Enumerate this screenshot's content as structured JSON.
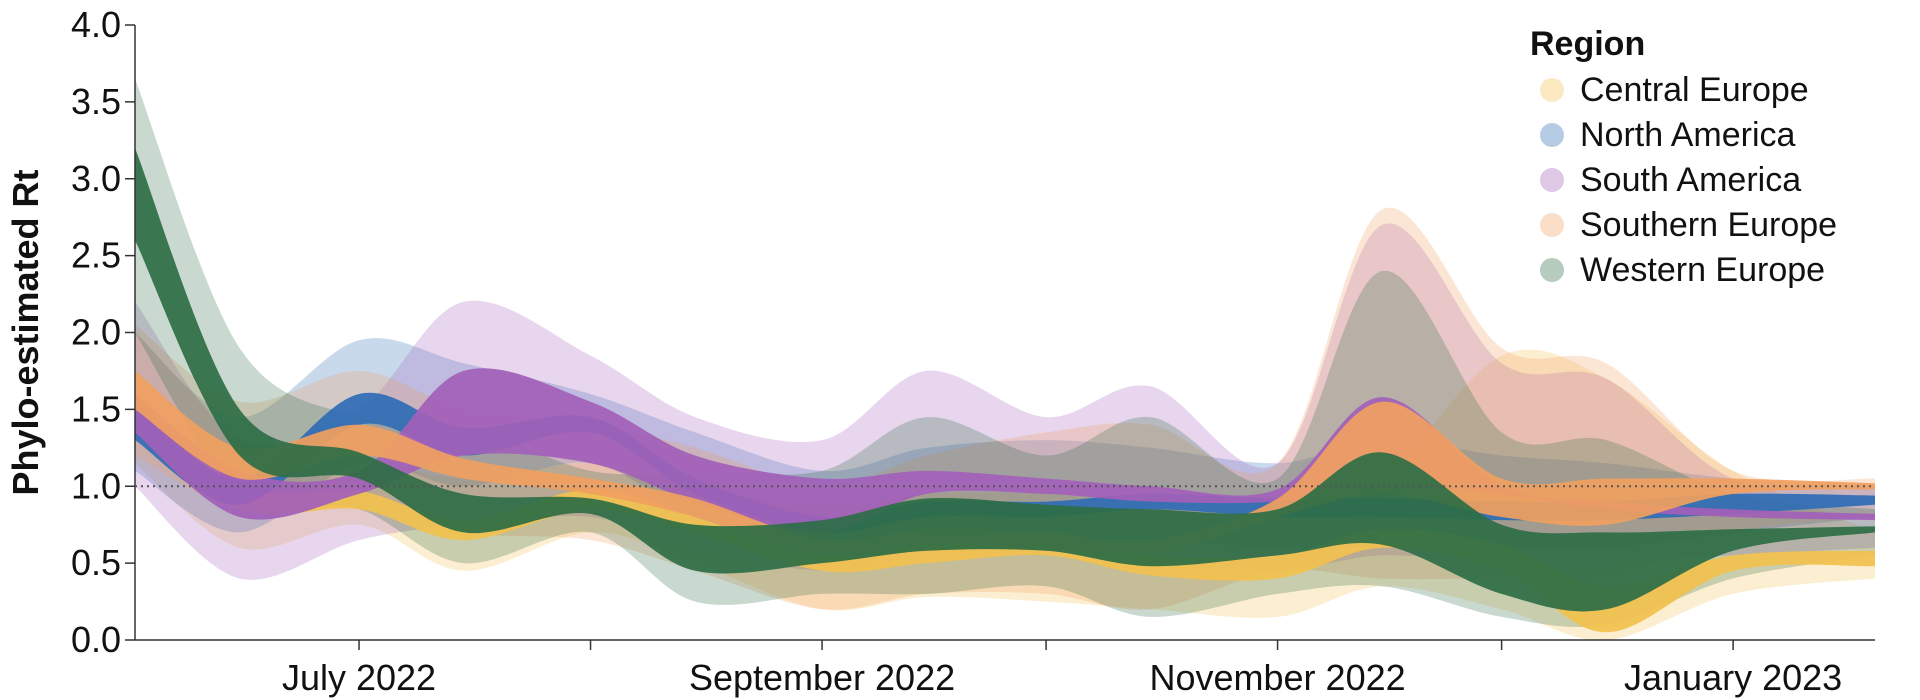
{
  "chart_data": {
    "type": "area",
    "ylabel": "Phylo-estimated Rt",
    "xlabel": "",
    "ylim": [
      0.0,
      4.0
    ],
    "xlim": [
      "2022-06-01",
      "2023-01-20"
    ],
    "yticks": [
      0.0,
      0.5,
      1.0,
      1.5,
      2.0,
      2.5,
      3.0,
      3.5,
      4.0
    ],
    "ytick_labels": [
      "0.0",
      "0.5",
      "1.0",
      "1.5",
      "2.0",
      "2.5",
      "3.0",
      "3.5",
      "4.0"
    ],
    "xticks": [
      {
        "date": "2022-07-01",
        "label": "July 2022"
      },
      {
        "date": "2022-08-01",
        "label": ""
      },
      {
        "date": "2022-09-01",
        "label": "September 2022"
      },
      {
        "date": "2022-10-01",
        "label": ""
      },
      {
        "date": "2022-11-01",
        "label": "November 2022"
      },
      {
        "date": "2022-12-01",
        "label": ""
      },
      {
        "date": "2023-01-01",
        "label": "January 2023"
      }
    ],
    "reference_line": 1.0,
    "legend": {
      "title": "Region",
      "position": "top-right"
    },
    "series": [
      {
        "name": "Central Europe",
        "color": "#f2c14e",
        "dates": [
          "2022-06-01",
          "2022-06-15",
          "2022-07-01",
          "2022-07-15",
          "2022-08-01",
          "2022-08-15",
          "2022-09-01",
          "2022-09-15",
          "2022-10-01",
          "2022-10-15",
          "2022-11-01",
          "2022-11-15",
          "2022-12-01",
          "2022-12-15",
          "2023-01-01",
          "2023-01-20"
        ],
        "inner_lower": [
          1.4,
          0.85,
          0.85,
          0.65,
          0.85,
          0.7,
          0.45,
          0.5,
          0.55,
          0.42,
          0.4,
          0.6,
          0.45,
          0.05,
          0.45,
          0.48
        ],
        "inner_upper": [
          1.6,
          1.0,
          0.97,
          0.78,
          0.98,
          0.8,
          0.55,
          0.62,
          0.68,
          0.55,
          0.55,
          0.72,
          0.62,
          0.35,
          0.55,
          0.58
        ],
        "outer_lower": [
          1.15,
          0.6,
          0.75,
          0.45,
          0.7,
          0.5,
          0.2,
          0.28,
          0.25,
          0.2,
          0.15,
          0.35,
          0.2,
          0.0,
          0.3,
          0.4
        ],
        "outer_upper": [
          2.0,
          1.35,
          1.2,
          1.05,
          1.15,
          1.0,
          0.85,
          0.95,
          0.95,
          0.9,
          0.9,
          1.05,
          1.85,
          1.7,
          1.1,
          0.7
        ]
      },
      {
        "name": "North America",
        "color": "#2f6db5",
        "dates": [
          "2022-06-01",
          "2022-06-15",
          "2022-07-01",
          "2022-07-15",
          "2022-08-01",
          "2022-08-15",
          "2022-09-01",
          "2022-09-15",
          "2022-10-01",
          "2022-10-15",
          "2022-11-01",
          "2022-11-15",
          "2022-12-01",
          "2022-12-15",
          "2023-01-01",
          "2023-01-20"
        ],
        "inner_lower": [
          1.3,
          0.88,
          1.4,
          1.2,
          1.35,
          0.95,
          0.7,
          0.8,
          0.8,
          0.85,
          0.8,
          0.8,
          0.78,
          0.78,
          0.82,
          0.88
        ],
        "inner_upper": [
          1.55,
          1.05,
          1.6,
          1.38,
          1.45,
          1.05,
          0.8,
          0.9,
          0.9,
          0.95,
          0.92,
          0.92,
          0.9,
          0.9,
          0.95,
          0.94
        ],
        "outer_lower": [
          1.1,
          0.7,
          1.15,
          1.0,
          1.15,
          0.8,
          0.55,
          0.65,
          0.6,
          0.65,
          0.6,
          0.6,
          0.6,
          0.6,
          0.7,
          0.8
        ],
        "outer_upper": [
          2.0,
          1.45,
          1.95,
          1.8,
          1.6,
          1.35,
          1.1,
          1.25,
          1.3,
          1.25,
          1.15,
          1.3,
          1.2,
          1.15,
          1.05,
          1.0
        ]
      },
      {
        "name": "South America",
        "color": "#a25fb8",
        "dates": [
          "2022-06-01",
          "2022-06-15",
          "2022-07-01",
          "2022-07-15",
          "2022-08-01",
          "2022-08-15",
          "2022-09-01",
          "2022-09-15",
          "2022-10-01",
          "2022-10-15",
          "2022-11-01",
          "2022-11-15",
          "2022-12-01",
          "2022-12-15",
          "2023-01-01",
          "2023-01-20"
        ],
        "inner_lower": [
          1.35,
          0.8,
          0.95,
          1.2,
          1.15,
          0.9,
          0.7,
          0.95,
          0.95,
          0.9,
          0.9,
          1.0,
          0.95,
          0.85,
          0.8,
          0.78
        ],
        "inner_upper": [
          1.6,
          1.1,
          1.1,
          1.75,
          1.55,
          1.2,
          1.05,
          1.1,
          1.05,
          1.0,
          0.98,
          1.58,
          1.0,
          0.9,
          0.85,
          0.82
        ],
        "outer_lower": [
          1.0,
          0.4,
          0.65,
          0.75,
          0.8,
          0.6,
          0.45,
          0.55,
          0.55,
          0.5,
          0.45,
          0.55,
          0.5,
          0.5,
          0.55,
          0.6
        ],
        "outer_upper": [
          2.2,
          1.3,
          1.5,
          2.2,
          1.85,
          1.45,
          1.3,
          1.75,
          1.45,
          1.65,
          1.15,
          2.7,
          1.8,
          1.7,
          1.05,
          1.0
        ]
      },
      {
        "name": "Southern Europe",
        "color": "#f0a060",
        "dates": [
          "2022-06-01",
          "2022-06-15",
          "2022-07-01",
          "2022-07-15",
          "2022-08-01",
          "2022-08-15",
          "2022-09-01",
          "2022-09-15",
          "2022-10-01",
          "2022-10-15",
          "2022-11-01",
          "2022-11-15",
          "2022-12-01",
          "2022-12-15",
          "2023-01-01",
          "2023-01-20"
        ],
        "inner_lower": [
          1.5,
          1.05,
          1.2,
          1.05,
          0.95,
          0.8,
          0.55,
          0.62,
          0.6,
          0.55,
          0.8,
          0.95,
          0.8,
          0.75,
          0.95,
          0.98
        ],
        "inner_upper": [
          1.75,
          1.25,
          1.4,
          1.18,
          1.05,
          0.92,
          0.65,
          0.72,
          0.7,
          0.65,
          0.92,
          1.55,
          1.05,
          1.05,
          1.05,
          1.02
        ],
        "outer_lower": [
          1.2,
          0.85,
          0.9,
          0.7,
          0.65,
          0.45,
          0.2,
          0.3,
          0.3,
          0.2,
          0.45,
          0.4,
          0.4,
          0.4,
          0.7,
          0.8
        ],
        "outer_upper": [
          2.05,
          1.55,
          1.75,
          1.5,
          1.4,
          1.25,
          1.0,
          1.2,
          1.35,
          1.4,
          1.15,
          2.8,
          1.9,
          1.8,
          1.1,
          1.05
        ]
      },
      {
        "name": "Western Europe",
        "color": "#2e6e45",
        "dates": [
          "2022-06-01",
          "2022-06-15",
          "2022-07-01",
          "2022-07-15",
          "2022-08-01",
          "2022-08-15",
          "2022-09-01",
          "2022-09-15",
          "2022-10-01",
          "2022-10-15",
          "2022-11-01",
          "2022-11-15",
          "2022-12-01",
          "2022-12-15",
          "2023-01-01",
          "2023-01-20"
        ],
        "inner_lower": [
          2.6,
          1.2,
          1.05,
          0.7,
          0.82,
          0.45,
          0.5,
          0.58,
          0.58,
          0.48,
          0.55,
          0.62,
          0.3,
          0.2,
          0.58,
          0.7
        ],
        "inner_upper": [
          3.2,
          1.5,
          1.22,
          0.95,
          0.92,
          0.75,
          0.78,
          0.92,
          0.88,
          0.85,
          0.85,
          1.22,
          0.75,
          0.7,
          0.72,
          0.74
        ],
        "outer_lower": [
          2.0,
          0.95,
          0.85,
          0.5,
          0.7,
          0.25,
          0.3,
          0.3,
          0.35,
          0.15,
          0.3,
          0.35,
          0.15,
          0.1,
          0.4,
          0.55
        ],
        "outer_upper": [
          3.65,
          1.9,
          1.45,
          1.4,
          1.1,
          1.1,
          1.1,
          1.45,
          1.2,
          1.45,
          1.05,
          2.4,
          1.35,
          1.3,
          0.95,
          0.85
        ]
      }
    ]
  }
}
